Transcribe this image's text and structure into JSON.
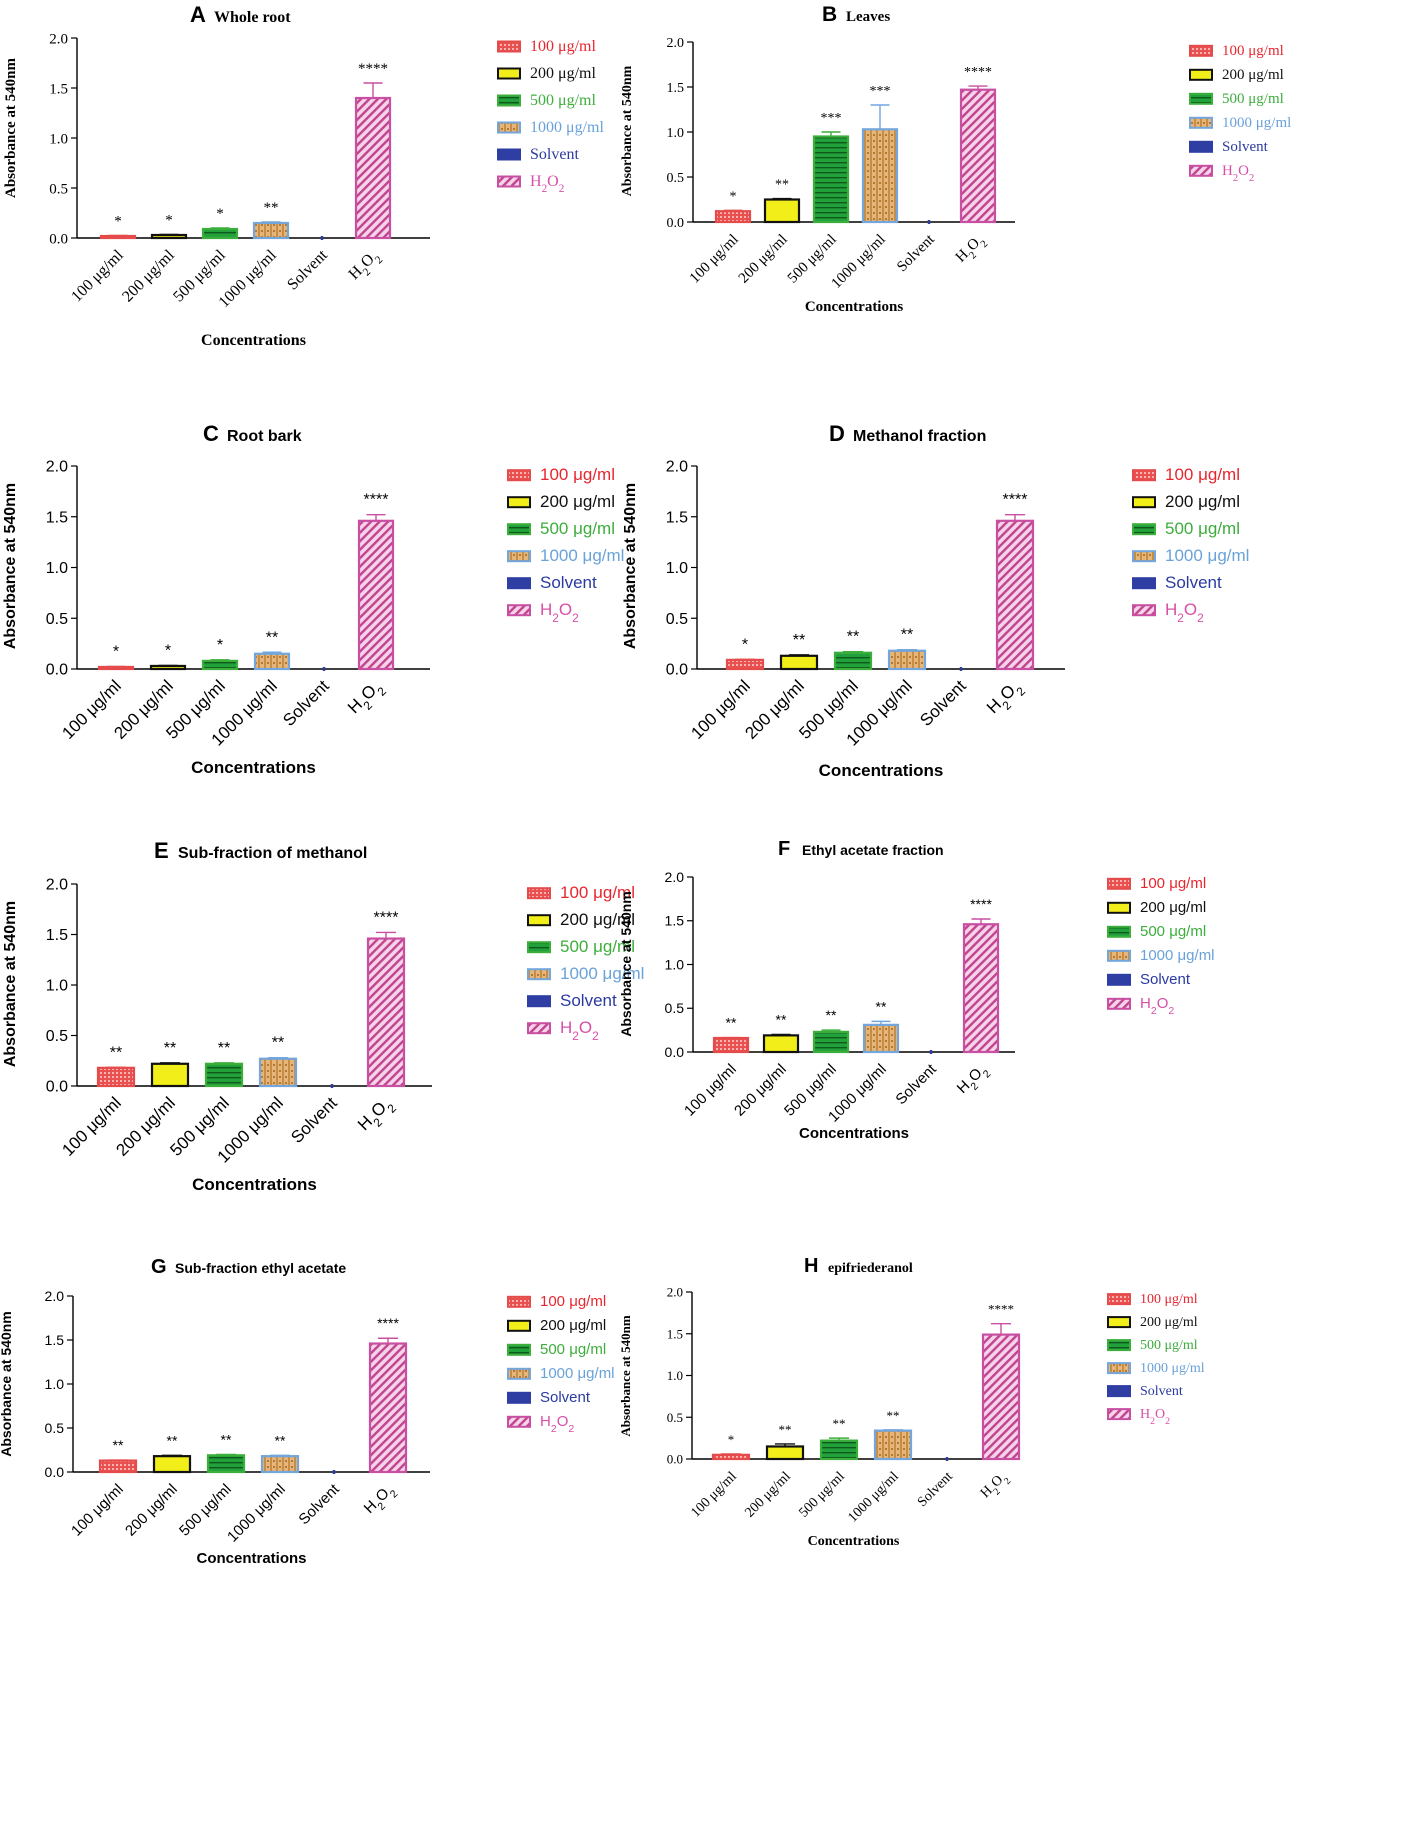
{
  "chart_data": [
    {
      "type": "bar",
      "panel_letter": "A",
      "title": "Whole root",
      "xlabel": "Concentrations",
      "ylabel": "Absorbance at 540nm",
      "ylim": [
        0,
        2.0
      ],
      "yticks": [
        "0.0",
        "0.5",
        "1.0",
        "1.5",
        "2.0"
      ],
      "categories": [
        {
          "pre": "100 μg/ml"
        },
        {
          "pre": "200 μg/ml"
        },
        {
          "pre": "500 μg/ml"
        },
        {
          "pre": "1000 μg/ml"
        },
        {
          "pre": "Solvent"
        },
        {
          "pre": "H",
          "sub1": "2",
          "mid": "O",
          "sub2": "2"
        }
      ],
      "values": [
        0.02,
        0.03,
        0.09,
        0.15,
        0.0,
        1.4
      ],
      "errors": [
        0.005,
        0.005,
        0.01,
        0.01,
        0.0,
        0.15
      ],
      "significance": [
        "*",
        "*",
        "*",
        "**",
        "",
        "****"
      ],
      "legend": [
        {
          "pre": "100 μg/ml"
        },
        {
          "pre": "200 μg/ml"
        },
        {
          "pre": "500 μg/ml"
        },
        {
          "pre": "1000 μg/ml"
        },
        {
          "pre": "Solvent"
        },
        {
          "pre": "H",
          "sub1": "2",
          "mid": "O",
          "sub2": "2"
        }
      ]
    },
    {
      "type": "bar",
      "panel_letter": "B",
      "title": "Leaves",
      "xlabel": "Concentrations",
      "ylabel": "Absorbance at 540nm",
      "ylim": [
        0,
        2.0
      ],
      "yticks": [
        "0.0",
        "0.5",
        "1.0",
        "1.5",
        "2.0"
      ],
      "categories": [
        {
          "pre": "100 μg/ml"
        },
        {
          "pre": "200 μg/ml"
        },
        {
          "pre": "500 μg/ml"
        },
        {
          "pre": "1000 μg/ml"
        },
        {
          "pre": "Solvent"
        },
        {
          "pre": "H",
          "sub1": "2",
          "mid": "O",
          "sub2": "2"
        }
      ],
      "values": [
        0.12,
        0.25,
        0.95,
        1.03,
        0.0,
        1.47
      ],
      "errors": [
        0.01,
        0.01,
        0.05,
        0.27,
        0.0,
        0.04
      ],
      "significance": [
        "*",
        "**",
        "***",
        "***",
        "",
        "****"
      ],
      "legend": [
        {
          "pre": "100 μg/ml"
        },
        {
          "pre": "200 μg/ml"
        },
        {
          "pre": "500 μg/ml"
        },
        {
          "pre": "1000 μg/ml"
        },
        {
          "pre": "Solvent"
        },
        {
          "pre": "H",
          "sub1": "2",
          "mid": "O",
          "sub2": "2"
        }
      ]
    },
    {
      "type": "bar",
      "panel_letter": "C",
      "title": "Root bark",
      "xlabel": "Concentrations",
      "ylabel": "Absorbance at 540nm",
      "ylim": [
        0,
        2.0
      ],
      "yticks": [
        "0.0",
        "0.5",
        "1.0",
        "1.5",
        "2.0"
      ],
      "categories": [
        {
          "pre": "100 μg/ml"
        },
        {
          "pre": "200 μg/ml"
        },
        {
          "pre": "500 μg/ml"
        },
        {
          "pre": "1000 μg/ml"
        },
        {
          "pre": "Solvent"
        },
        {
          "pre": "H",
          "sub1": "2",
          "mid": "O",
          "sub2": "2"
        }
      ],
      "values": [
        0.02,
        0.03,
        0.08,
        0.15,
        0.0,
        1.46
      ],
      "errors": [
        0.005,
        0.005,
        0.01,
        0.015,
        0.0,
        0.06
      ],
      "significance": [
        "*",
        "*",
        "*",
        "**",
        "",
        "****"
      ],
      "legend": [
        {
          "pre": "100 μg/ml"
        },
        {
          "pre": "200 μg/ml"
        },
        {
          "pre": "500 μg/ml"
        },
        {
          "pre": "1000 μg/ml"
        },
        {
          "pre": "Solvent"
        },
        {
          "pre": "H",
          "sub1": "2",
          "mid": "O",
          "sub2": "2"
        }
      ]
    },
    {
      "type": "bar",
      "panel_letter": "D",
      "title": "Methanol fraction",
      "xlabel": "Concentrations",
      "ylabel": "Absorbance at 540nm",
      "ylim": [
        0,
        2.0
      ],
      "yticks": [
        "0.0",
        "0.5",
        "1.0",
        "1.5",
        "2.0"
      ],
      "categories": [
        {
          "pre": "100 μg/ml"
        },
        {
          "pre": "200 μg/ml"
        },
        {
          "pre": "500 μg/ml"
        },
        {
          "pre": "1000 μg/ml"
        },
        {
          "pre": "Solvent"
        },
        {
          "pre": "H",
          "sub1": "2",
          "mid": "O",
          "sub2": "2"
        }
      ],
      "values": [
        0.09,
        0.13,
        0.16,
        0.18,
        0.0,
        1.46
      ],
      "errors": [
        0.005,
        0.01,
        0.01,
        0.01,
        0.0,
        0.06
      ],
      "significance": [
        "*",
        "**",
        "**",
        "**",
        "",
        "****"
      ],
      "legend": [
        {
          "pre": "100 μg/ml"
        },
        {
          "pre": "200 μg/ml"
        },
        {
          "pre": "500 μg/ml"
        },
        {
          "pre": "1000 μg/ml"
        },
        {
          "pre": "Solvent"
        },
        {
          "pre": "H",
          "sub1": "2",
          "mid": "O",
          "sub2": "2"
        }
      ]
    },
    {
      "type": "bar",
      "panel_letter": "E",
      "title": "Sub-fraction of methanol",
      "xlabel": "Concentrations",
      "ylabel": "Absorbance at 540nm",
      "ylim": [
        0,
        2.0
      ],
      "yticks": [
        "0.0",
        "0.5",
        "1.0",
        "1.5",
        "2.0"
      ],
      "categories": [
        {
          "pre": "100 μg/ml"
        },
        {
          "pre": "200 μg/ml"
        },
        {
          "pre": "500 μg/ml"
        },
        {
          "pre": "1000 μg/ml"
        },
        {
          "pre": "Solvent"
        },
        {
          "pre": "H",
          "sub1": "2",
          "mid": "O",
          "sub2": "2"
        }
      ],
      "values": [
        0.18,
        0.22,
        0.22,
        0.27,
        0.0,
        1.46
      ],
      "errors": [
        0.005,
        0.01,
        0.01,
        0.01,
        0.0,
        0.06
      ],
      "significance": [
        "**",
        "**",
        "**",
        "**",
        "",
        "****"
      ],
      "legend": [
        {
          "pre": "100 μg/ml"
        },
        {
          "pre": "200 μg/ml"
        },
        {
          "pre": "500 μg/ml"
        },
        {
          "pre": "1000 μg/ml"
        },
        {
          "pre": "Solvent"
        },
        {
          "pre": "H",
          "sub1": "2",
          "mid": "O",
          "sub2": "2"
        }
      ]
    },
    {
      "type": "bar",
      "panel_letter": "F",
      "title": "Ethyl acetate fraction",
      "xlabel": "Concentrations",
      "ylabel": "Absorbance at 540nm",
      "ylim": [
        0,
        2.0
      ],
      "yticks": [
        "0.0",
        "0.5",
        "1.0",
        "1.5",
        "2.0"
      ],
      "categories": [
        {
          "pre": "100 μg/ml"
        },
        {
          "pre": "200 μg/ml"
        },
        {
          "pre": "500 μg/ml"
        },
        {
          "pre": "1000 μg/ml"
        },
        {
          "pre": "Solvent"
        },
        {
          "pre": "H",
          "sub1": "2",
          "mid": "O",
          "sub2": "2"
        }
      ],
      "values": [
        0.16,
        0.19,
        0.23,
        0.31,
        0.0,
        1.46
      ],
      "errors": [
        0.005,
        0.01,
        0.02,
        0.04,
        0.0,
        0.06
      ],
      "significance": [
        "**",
        "**",
        "**",
        "**",
        "",
        "****"
      ],
      "legend": [
        {
          "pre": "100 μg/ml"
        },
        {
          "pre": "200 μg/ml"
        },
        {
          "pre": "500 μg/ml"
        },
        {
          "pre": "1000 μg/ml"
        },
        {
          "pre": "Solvent"
        },
        {
          "pre": "H",
          "sub1": "2",
          "mid": "O",
          "sub2": "2"
        }
      ]
    },
    {
      "type": "bar",
      "panel_letter": "G",
      "title": "Sub-fraction ethyl acetate",
      "xlabel": "Concentrations",
      "ylabel": "Absorbance at 540nm",
      "ylim": [
        0,
        2.0
      ],
      "yticks": [
        "0.0",
        "0.5",
        "1.0",
        "1.5",
        "2.0"
      ],
      "categories": [
        {
          "pre": "100 μg/ml"
        },
        {
          "pre": "200 μg/ml"
        },
        {
          "pre": "500 μg/ml"
        },
        {
          "pre": "1000 μg/ml"
        },
        {
          "pre": "Solvent"
        },
        {
          "pre": "H",
          "sub1": "2",
          "mid": "O",
          "sub2": "2"
        }
      ],
      "values": [
        0.13,
        0.18,
        0.19,
        0.18,
        0.0,
        1.46
      ],
      "errors": [
        0.005,
        0.01,
        0.01,
        0.01,
        0.0,
        0.06
      ],
      "significance": [
        "**",
        "**",
        "**",
        "**",
        "",
        "****"
      ],
      "legend": [
        {
          "pre": "100 μg/ml"
        },
        {
          "pre": "200 μg/ml"
        },
        {
          "pre": "500 μg/ml"
        },
        {
          "pre": "1000 μg/ml"
        },
        {
          "pre": "Solvent"
        },
        {
          "pre": "H",
          "sub1": "2",
          "mid": "O",
          "sub2": "2"
        }
      ]
    },
    {
      "type": "bar",
      "panel_letter": "H",
      "title": "epifriederanol",
      "xlabel": "Concentrations",
      "ylabel": "Absorbance at 540nm",
      "ylim": [
        0,
        2.0
      ],
      "yticks": [
        "0.0",
        "0.5",
        "1.0",
        "1.5",
        "2.0"
      ],
      "categories": [
        {
          "pre": "100 μg/ml"
        },
        {
          "pre": "200 μg/ml"
        },
        {
          "pre": "500 μg/ml"
        },
        {
          "pre": "1000 μg/ml"
        },
        {
          "pre": "Solvent"
        },
        {
          "pre": "H",
          "sub1": "2",
          "mid": "O",
          "sub2": "2"
        }
      ],
      "values": [
        0.05,
        0.15,
        0.22,
        0.34,
        0.0,
        1.49
      ],
      "errors": [
        0.01,
        0.03,
        0.03,
        0.01,
        0.0,
        0.13
      ],
      "significance": [
        "*",
        "**",
        "**",
        "**",
        "",
        "****"
      ],
      "legend": [
        {
          "pre": "100 μg/ml"
        },
        {
          "pre": "200 μg/ml"
        },
        {
          "pre": "500 μg/ml"
        },
        {
          "pre": "1000 μg/ml"
        },
        {
          "pre": "Solvent"
        },
        {
          "pre": "H",
          "sub1": "2",
          "mid": "O",
          "sub2": "2"
        }
      ]
    }
  ],
  "series_colors": {
    "fills": [
      "#e8514f",
      "#f2ee1a",
      "#22a13b",
      "#d9a05a",
      "#2e3ea3",
      "#d98cc0"
    ],
    "edges": [
      "#e54b4b",
      "#111111",
      "#3cae3c",
      "#72a6dd",
      "#2e3ea3",
      "#c84fa2"
    ],
    "legend_text": [
      "#e8262f",
      "#111111",
      "#3dad3d",
      "#6aa2da",
      "#2a3aa0",
      "#d84fa6"
    ]
  }
}
